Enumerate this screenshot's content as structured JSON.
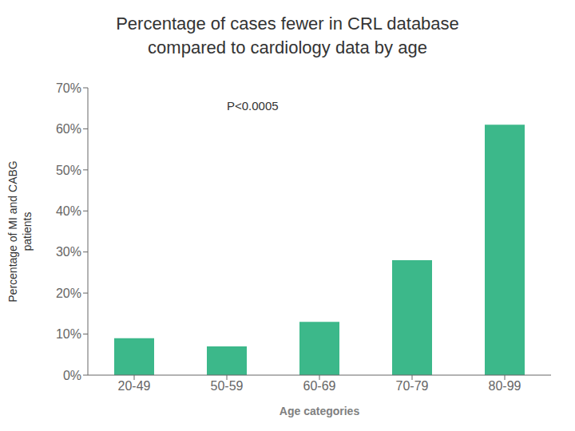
{
  "chart_data": {
    "type": "bar",
    "title": "Percentage of cases fewer in CRL database",
    "subtitle": "compared to cardiology data by age",
    "categories": [
      "20-49",
      "50-59",
      "60-69",
      "70-79",
      "80-99"
    ],
    "values": [
      9,
      7,
      13,
      28,
      61
    ],
    "color": "#3cb88a",
    "xlabel": "Age categories",
    "ylabel": "Percentage of MI and CABG\npatients",
    "annotation": "P<0.0005",
    "ylim": [
      0,
      70
    ],
    "yticks": [
      {
        "value": 0,
        "label": "0%"
      },
      {
        "value": 10,
        "label": "10%"
      },
      {
        "value": 20,
        "label": "20%"
      },
      {
        "value": 30,
        "label": "30%"
      },
      {
        "value": 40,
        "label": "40%"
      },
      {
        "value": 50,
        "label": "50%"
      },
      {
        "value": 60,
        "label": "60%"
      },
      {
        "value": 70,
        "label": "70%"
      }
    ],
    "grid": false
  }
}
